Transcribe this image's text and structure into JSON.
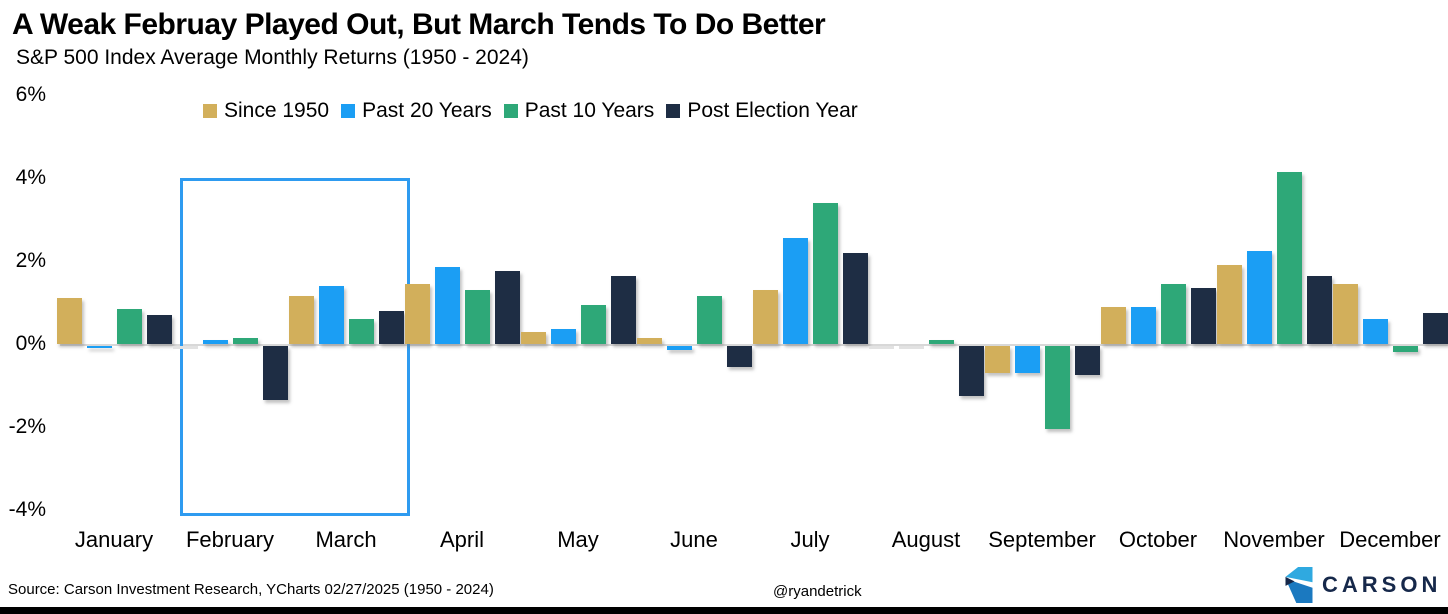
{
  "header": {
    "title": "A Weak Februay Played Out, But March Tends To Do Better",
    "subtitle": "S&P 500 Index Average Monthly Returns (1950 - 2024)"
  },
  "chart_data": {
    "type": "bar",
    "categories": [
      "January",
      "February",
      "March",
      "April",
      "May",
      "June",
      "July",
      "August",
      "September",
      "October",
      "November",
      "December"
    ],
    "series": [
      {
        "name": "Since 1950",
        "color": "#d2af5b",
        "values": [
          1.1,
          0.0,
          1.15,
          1.45,
          0.3,
          0.15,
          1.3,
          0.0,
          -0.65,
          0.9,
          1.9,
          1.45
        ]
      },
      {
        "name": "Past 20 Years",
        "color": "#1b9ef4",
        "values": [
          -0.05,
          0.1,
          1.4,
          1.85,
          0.35,
          -0.1,
          2.55,
          0.0,
          -0.65,
          0.9,
          2.25,
          0.6
        ]
      },
      {
        "name": "Past 10 Years",
        "color": "#2ea878",
        "values": [
          0.85,
          0.15,
          0.6,
          1.3,
          0.95,
          1.15,
          3.4,
          0.1,
          -2.0,
          1.45,
          4.15,
          -0.15
        ]
      },
      {
        "name": "Post Election Year",
        "color": "#1e2d44",
        "values": [
          0.7,
          -1.3,
          0.8,
          1.75,
          1.65,
          -0.5,
          2.2,
          -1.2,
          -0.7,
          1.35,
          1.65,
          0.75
        ]
      }
    ],
    "y_ticks": [
      "6%",
      "4%",
      "2%",
      "0%",
      "-2%",
      "-4%"
    ],
    "ylim": [
      -4,
      6
    ],
    "grid": false,
    "legend_position": "top",
    "highlight": {
      "start_month": "February",
      "end_month": "March",
      "from": -4,
      "to": 4,
      "border_color": "#2e9bf0"
    }
  },
  "footer": {
    "source": "Source: Carson Investment Research, YCharts 02/27/2025 (1950 - 2024)",
    "handle": "@ryandetrick",
    "brand": "CARSON",
    "brand_color": "#16284a",
    "logo_colors": {
      "top": "#2fa9e0",
      "bottom": "#1b79c0",
      "notch": "#16284a"
    }
  }
}
